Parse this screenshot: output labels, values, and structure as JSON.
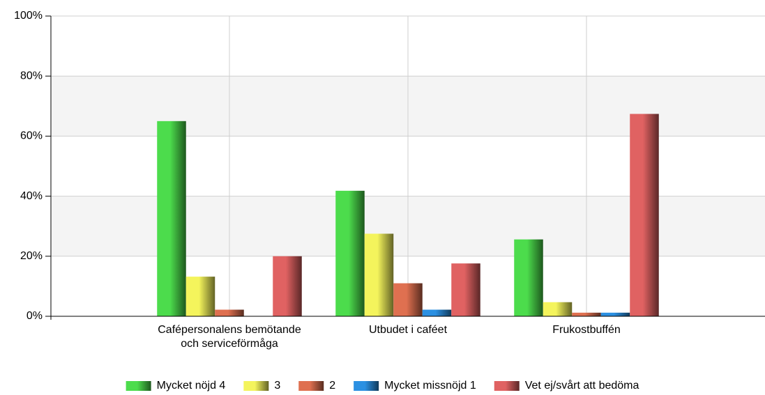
{
  "chart_data": {
    "type": "bar",
    "categories": [
      "Cafépersonalens bemötande\noch serviceförmåga",
      "Utbudet i caféet",
      "Frukostbuffén"
    ],
    "series": [
      {
        "name": "Mycket nöjd 4",
        "color": "#4cdc4c",
        "values": [
          65,
          41.8,
          25.6
        ]
      },
      {
        "name": "3",
        "color": "#f4f45c",
        "values": [
          13.2,
          27.5,
          4.7
        ]
      },
      {
        "name": "2",
        "color": "#df7050",
        "values": [
          2.2,
          11,
          1.2
        ]
      },
      {
        "name": "Mycket missnöjd 1",
        "color": "#2b90e2",
        "values": [
          0,
          2.2,
          1.2
        ]
      },
      {
        "name": "Vet ej/svårt att bedöma",
        "color": "#e06262",
        "values": [
          20,
          17.6,
          67.4
        ]
      }
    ],
    "ylim": [
      0,
      100
    ],
    "yticks": [
      {
        "value": 0,
        "label": "0%"
      },
      {
        "value": 20,
        "label": "20%"
      },
      {
        "value": 40,
        "label": "40%"
      },
      {
        "value": 60,
        "label": "60%"
      },
      {
        "value": 80,
        "label": "80%"
      },
      {
        "value": 100,
        "label": "100%"
      }
    ],
    "grid": true,
    "legend": "bottom"
  }
}
